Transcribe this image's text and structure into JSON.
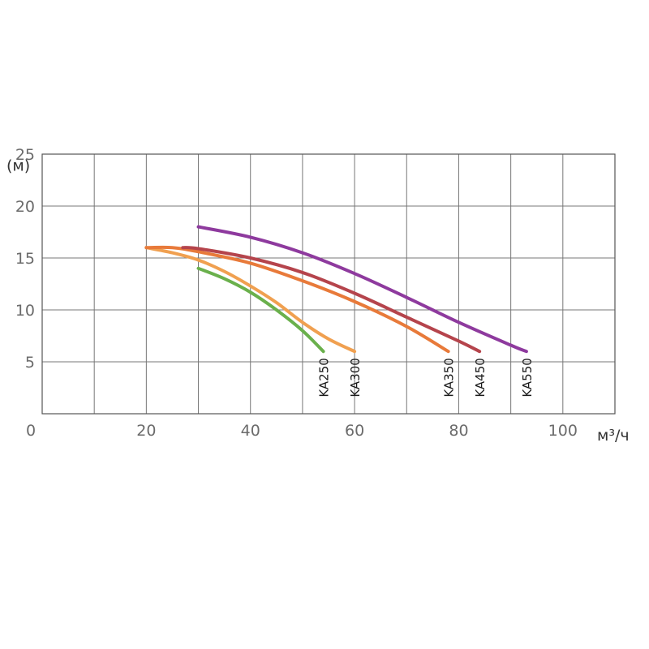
{
  "chart_data": {
    "type": "line",
    "xlabel": "",
    "ylabel": "(м)",
    "x_unit": "м³/ч",
    "xlim": [
      0,
      110
    ],
    "ylim": [
      0,
      25
    ],
    "x_ticks": [
      0,
      20,
      40,
      60,
      80,
      100
    ],
    "x_tick_labels": [
      "0",
      "20",
      "40",
      "60",
      "80",
      "100"
    ],
    "y_ticks": [
      5,
      10,
      15,
      20,
      25
    ],
    "y_tick_labels": [
      "5",
      "10",
      "15",
      "20",
      "25"
    ],
    "grid": true,
    "legend": "labels at curve ends",
    "series": [
      {
        "name": "KA250",
        "color": "#6ab04c",
        "x": [
          30,
          35,
          40,
          45,
          50,
          54
        ],
        "y": [
          14,
          13,
          11.7,
          10,
          8,
          6
        ]
      },
      {
        "name": "KA300",
        "color": "#f0a050",
        "x": [
          20,
          25,
          30,
          35,
          40,
          45,
          50,
          55,
          60
        ],
        "y": [
          16,
          15.5,
          14.8,
          13.7,
          12.3,
          10.7,
          8.8,
          7.2,
          6
        ]
      },
      {
        "name": "KA350",
        "color": "#e87a3a",
        "x": [
          20,
          25,
          30,
          40,
          50,
          60,
          70,
          78
        ],
        "y": [
          16,
          16,
          15.6,
          14.5,
          12.8,
          10.8,
          8.4,
          6
        ]
      },
      {
        "name": "KA450",
        "color": "#b5444c",
        "x": [
          27,
          30,
          40,
          50,
          60,
          70,
          80,
          84
        ],
        "y": [
          16,
          15.9,
          15,
          13.6,
          11.6,
          9.3,
          7,
          6
        ]
      },
      {
        "name": "KA550",
        "color": "#8e3a9e",
        "x": [
          30,
          40,
          50,
          60,
          70,
          80,
          90,
          93
        ],
        "y": [
          18,
          17,
          15.5,
          13.5,
          11.2,
          8.8,
          6.6,
          6
        ]
      }
    ]
  }
}
